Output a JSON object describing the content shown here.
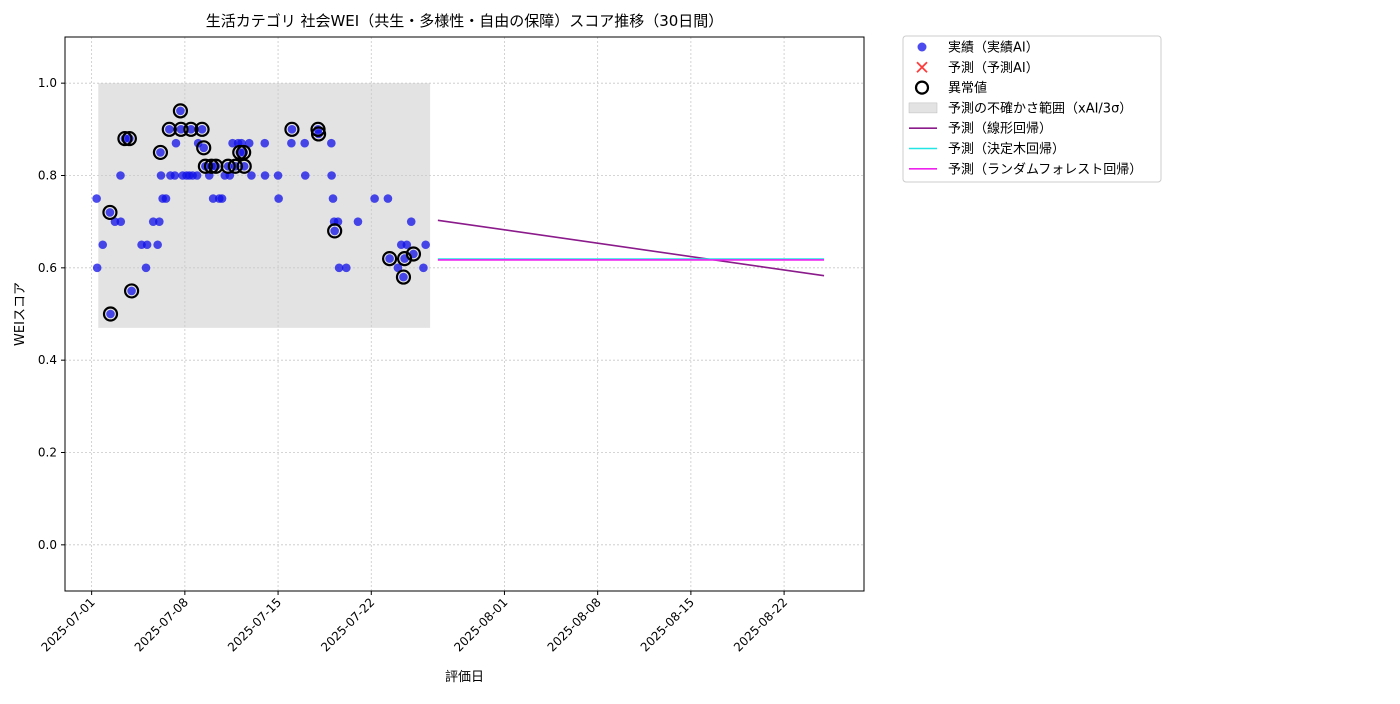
{
  "chart_data": {
    "type": "scatter",
    "title": "生活カテゴリ 社会WEI（共生・多様性・自由の保障）スコア推移（30日間）",
    "xlabel": "評価日",
    "ylabel": "WEIスコア",
    "xlim": [
      "2025-06-29",
      "2025-08-28"
    ],
    "ylim": [
      -0.1,
      1.1
    ],
    "x_ticks": [
      "2025-07-01",
      "2025-07-08",
      "2025-07-15",
      "2025-07-22",
      "2025-08-01",
      "2025-08-08",
      "2025-08-15",
      "2025-08-22"
    ],
    "y_ticks": [
      0.0,
      0.2,
      0.4,
      0.6,
      0.8,
      1.0
    ],
    "y_tick_labels": [
      "0.0",
      "0.2",
      "0.4",
      "0.6",
      "0.8",
      "1.0"
    ],
    "grid": true,
    "legend_position": "outside-top-right",
    "colors": {
      "actual": "#1010e8",
      "predicted": "#ff3b3b",
      "anomaly": "#000000",
      "band": "#c8c8c8",
      "linear": "#8b1a8b",
      "tree": "#22e6e6",
      "forest": "#ee22ee",
      "grid": "#c8c8c8"
    },
    "legend": [
      {
        "key": "actual",
        "label": "実績（実績AI）"
      },
      {
        "key": "predicted",
        "label": "予測（予測AI）"
      },
      {
        "key": "anomaly",
        "label": "異常値"
      },
      {
        "key": "band",
        "label": "予測の不確かさ範囲（xAI/3σ）"
      },
      {
        "key": "linear",
        "label": "予測（線形回帰）"
      },
      {
        "key": "tree",
        "label": "予測（決定木回帰）"
      },
      {
        "key": "forest",
        "label": "予測（ランダムフォレスト回帰）"
      }
    ],
    "uncertainty_band": {
      "x_start": "2025-07-01 12:00",
      "x_end": "2025-07-26 10:00",
      "y_low": 0.47,
      "y_high": 1.0
    },
    "series": [
      {
        "name": "実績（実績AI）",
        "type": "scatter",
        "points": [
          [
            "2025-07-01 09:00",
            0.75
          ],
          [
            "2025-07-01 10:00",
            0.6
          ],
          [
            "2025-07-01 20:00",
            0.65
          ],
          [
            "2025-07-02 09:00",
            0.72
          ],
          [
            "2025-07-02 10:00",
            0.5
          ],
          [
            "2025-07-02 18:00",
            0.7
          ],
          [
            "2025-07-03 04:00",
            0.8
          ],
          [
            "2025-07-03 04:30",
            0.7
          ],
          [
            "2025-07-03 12:00",
            0.88
          ],
          [
            "2025-07-03 20:00",
            0.88
          ],
          [
            "2025-07-04 00:00",
            0.55
          ],
          [
            "2025-07-04 18:00",
            0.65
          ],
          [
            "2025-07-05 02:00",
            0.6
          ],
          [
            "2025-07-05 04:00",
            0.65
          ],
          [
            "2025-07-05 15:00",
            0.7
          ],
          [
            "2025-07-05 23:00",
            0.65
          ],
          [
            "2025-07-06 02:00",
            0.7
          ],
          [
            "2025-07-06 04:00",
            0.85
          ],
          [
            "2025-07-06 05:00",
            0.8
          ],
          [
            "2025-07-06 08:00",
            0.75
          ],
          [
            "2025-07-06 14:00",
            0.75
          ],
          [
            "2025-07-06 20:00",
            0.9
          ],
          [
            "2025-07-06 22:00",
            0.8
          ],
          [
            "2025-07-07 06:00",
            0.8
          ],
          [
            "2025-07-07 08:00",
            0.87
          ],
          [
            "2025-07-07 16:00",
            0.94
          ],
          [
            "2025-07-07 17:00",
            0.9
          ],
          [
            "2025-07-07 20:00",
            0.8
          ],
          [
            "2025-07-08 03:00",
            0.8
          ],
          [
            "2025-07-08 08:00",
            0.8
          ],
          [
            "2025-07-08 11:00",
            0.9
          ],
          [
            "2025-07-08 14:00",
            0.8
          ],
          [
            "2025-07-08 22:00",
            0.8
          ],
          [
            "2025-07-09 00:00",
            0.87
          ],
          [
            "2025-07-09 07:00",
            0.9
          ],
          [
            "2025-07-09 10:00",
            0.86
          ],
          [
            "2025-07-09 13:00",
            0.82
          ],
          [
            "2025-07-09 20:00",
            0.8
          ],
          [
            "2025-07-10 00:00",
            0.82
          ],
          [
            "2025-07-10 03:00",
            0.75
          ],
          [
            "2025-07-10 08:00",
            0.82
          ],
          [
            "2025-07-10 14:00",
            0.75
          ],
          [
            "2025-07-10 19:00",
            0.75
          ],
          [
            "2025-07-11 00:00",
            0.8
          ],
          [
            "2025-07-11 06:00",
            0.82
          ],
          [
            "2025-07-11 09:00",
            0.8
          ],
          [
            "2025-07-11 14:00",
            0.87
          ],
          [
            "2025-07-11 19:00",
            0.82
          ],
          [
            "2025-07-12 00:00",
            0.87
          ],
          [
            "2025-07-12 03:00",
            0.85
          ],
          [
            "2025-07-12 06:00",
            0.87
          ],
          [
            "2025-07-12 10:00",
            0.85
          ],
          [
            "2025-07-12 11:00",
            0.82
          ],
          [
            "2025-07-12 20:00",
            0.87
          ],
          [
            "2025-07-13 00:00",
            0.8
          ],
          [
            "2025-07-14 00:00",
            0.87
          ],
          [
            "2025-07-14 00:30",
            0.8
          ],
          [
            "2025-07-15 00:00",
            0.8
          ],
          [
            "2025-07-15 01:00",
            0.75
          ],
          [
            "2025-07-16 00:00",
            0.87
          ],
          [
            "2025-07-16 01:00",
            0.9
          ],
          [
            "2025-07-17 00:00",
            0.87
          ],
          [
            "2025-07-17 01:00",
            0.8
          ],
          [
            "2025-07-18 00:00",
            0.9
          ],
          [
            "2025-07-18 01:00",
            0.89
          ],
          [
            "2025-07-19 00:00",
            0.87
          ],
          [
            "2025-07-19 00:30",
            0.8
          ],
          [
            "2025-07-19 03:00",
            0.75
          ],
          [
            "2025-07-19 05:00",
            0.7
          ],
          [
            "2025-07-19 06:00",
            0.68
          ],
          [
            "2025-07-19 12:00",
            0.7
          ],
          [
            "2025-07-19 14:00",
            0.6
          ],
          [
            "2025-07-20 03:00",
            0.6
          ],
          [
            "2025-07-21 00:00",
            0.7
          ],
          [
            "2025-07-22 06:00",
            0.75
          ],
          [
            "2025-07-23 06:00",
            0.75
          ],
          [
            "2025-07-23 09:00",
            0.62
          ],
          [
            "2025-07-24 00:00",
            0.6
          ],
          [
            "2025-07-24 06:00",
            0.65
          ],
          [
            "2025-07-24 10:00",
            0.58
          ],
          [
            "2025-07-24 12:00",
            0.62
          ],
          [
            "2025-07-24 16:00",
            0.65
          ],
          [
            "2025-07-25 00:00",
            0.7
          ],
          [
            "2025-07-25 04:00",
            0.63
          ],
          [
            "2025-07-25 22:00",
            0.6
          ],
          [
            "2025-07-26 02:00",
            0.65
          ]
        ]
      },
      {
        "name": "異常値",
        "type": "scatter",
        "points": [
          [
            "2025-07-02 09:00",
            0.72
          ],
          [
            "2025-07-02 10:00",
            0.5
          ],
          [
            "2025-07-03 12:00",
            0.88
          ],
          [
            "2025-07-03 20:00",
            0.88
          ],
          [
            "2025-07-04 00:00",
            0.55
          ],
          [
            "2025-07-06 04:00",
            0.85
          ],
          [
            "2025-07-06 20:00",
            0.9
          ],
          [
            "2025-07-07 16:00",
            0.94
          ],
          [
            "2025-07-07 17:00",
            0.9
          ],
          [
            "2025-07-08 11:00",
            0.9
          ],
          [
            "2025-07-09 07:00",
            0.9
          ],
          [
            "2025-07-09 10:00",
            0.86
          ],
          [
            "2025-07-09 13:00",
            0.82
          ],
          [
            "2025-07-10 00:00",
            0.82
          ],
          [
            "2025-07-10 08:00",
            0.82
          ],
          [
            "2025-07-11 06:00",
            0.82
          ],
          [
            "2025-07-11 19:00",
            0.82
          ],
          [
            "2025-07-12 03:00",
            0.85
          ],
          [
            "2025-07-12 10:00",
            0.85
          ],
          [
            "2025-07-12 11:00",
            0.82
          ],
          [
            "2025-07-16 01:00",
            0.9
          ],
          [
            "2025-07-18 00:00",
            0.9
          ],
          [
            "2025-07-18 01:00",
            0.89
          ],
          [
            "2025-07-19 06:00",
            0.68
          ],
          [
            "2025-07-23 09:00",
            0.62
          ],
          [
            "2025-07-24 10:00",
            0.58
          ],
          [
            "2025-07-24 12:00",
            0.62
          ],
          [
            "2025-07-25 04:00",
            0.63
          ]
        ]
      },
      {
        "name": "予測（線形回帰）",
        "type": "line",
        "points": [
          [
            "2025-07-27",
            0.703
          ],
          [
            "2025-08-25",
            0.583
          ]
        ]
      },
      {
        "name": "予測（決定木回帰）",
        "type": "line",
        "points": [
          [
            "2025-07-27",
            0.619
          ],
          [
            "2025-08-25",
            0.619
          ]
        ]
      },
      {
        "name": "予測（ランダムフォレスト回帰）",
        "type": "line",
        "points": [
          [
            "2025-07-27",
            0.617
          ],
          [
            "2025-08-25",
            0.617
          ]
        ]
      }
    ]
  }
}
